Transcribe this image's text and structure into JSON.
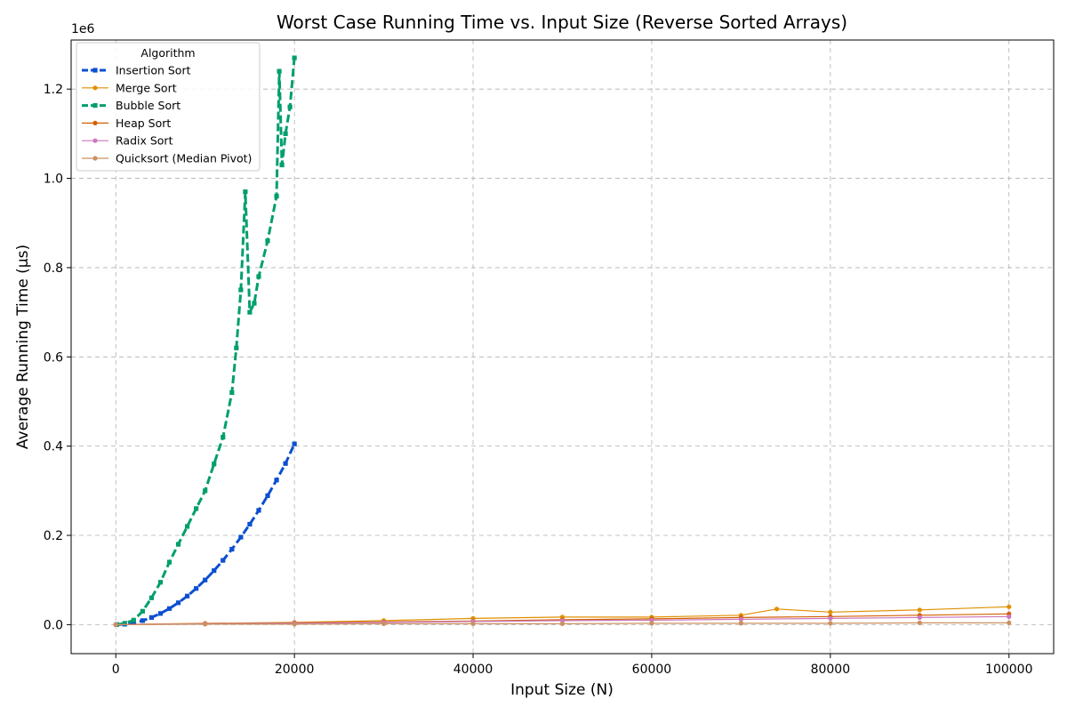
{
  "chart_data": {
    "type": "line",
    "title": "Worst Case Running Time vs. Input Size (Reverse Sorted Arrays)",
    "xlabel": "Input Size (N)",
    "ylabel": "Average Running Time (μs)",
    "y_offset_label": "1e6",
    "y_scale_factor": 1000000,
    "xlim": [
      -5000,
      105000
    ],
    "ylim": [
      -0.065,
      1.31
    ],
    "x_ticks": [
      0,
      20000,
      40000,
      60000,
      80000,
      100000
    ],
    "x_tick_labels": [
      "0",
      "20000",
      "40000",
      "60000",
      "80000",
      "100000"
    ],
    "y_ticks": [
      0.0,
      0.2,
      0.4,
      0.6,
      0.8,
      1.0,
      1.2
    ],
    "y_tick_labels": [
      "0.0",
      "0.2",
      "0.4",
      "0.6",
      "0.8",
      "1.0",
      "1.2"
    ],
    "grid": true,
    "legend": {
      "title": "Algorithm",
      "placement": "top-left"
    },
    "series": [
      {
        "name": "Insertion Sort",
        "color": "#0b4fd1",
        "dashed": true,
        "marker": "square",
        "x": [
          100,
          1000,
          2000,
          3000,
          4000,
          5000,
          6000,
          7000,
          8000,
          9000,
          10000,
          11000,
          12000,
          13000,
          14000,
          15000,
          16000,
          17000,
          18000,
          19000,
          20000
        ],
        "y": [
          0.0,
          0.001,
          0.004,
          0.009,
          0.016,
          0.025,
          0.036,
          0.049,
          0.064,
          0.081,
          0.1,
          0.121,
          0.144,
          0.169,
          0.196,
          0.225,
          0.256,
          0.289,
          0.324,
          0.361,
          0.405
        ]
      },
      {
        "name": "Merge Sort",
        "color": "#e08f00",
        "dashed": false,
        "marker": "circle",
        "x": [
          0,
          10000,
          20000,
          30000,
          40000,
          50000,
          60000,
          70000,
          74000,
          80000,
          90000,
          100000
        ],
        "y": [
          0.0,
          0.003,
          0.005,
          0.009,
          0.014,
          0.017,
          0.017,
          0.021,
          0.035,
          0.028,
          0.033,
          0.04
        ]
      },
      {
        "name": "Bubble Sort",
        "color": "#009e6e",
        "dashed": true,
        "marker": "square",
        "x": [
          100,
          1000,
          2000,
          3000,
          4000,
          5000,
          6000,
          7000,
          8000,
          9000,
          10000,
          11000,
          12000,
          13000,
          13500,
          14000,
          14500,
          15000,
          15500,
          16000,
          17000,
          18000,
          18300,
          18600,
          19000,
          19500,
          20000
        ],
        "y": [
          0.0,
          0.003,
          0.01,
          0.03,
          0.06,
          0.095,
          0.14,
          0.18,
          0.22,
          0.26,
          0.3,
          0.36,
          0.42,
          0.52,
          0.62,
          0.75,
          0.97,
          0.7,
          0.72,
          0.78,
          0.86,
          0.96,
          1.24,
          1.03,
          1.1,
          1.16,
          1.27
        ]
      },
      {
        "name": "Heap Sort",
        "color": "#d35f00",
        "dashed": false,
        "marker": "circle",
        "x": [
          0,
          10000,
          20000,
          30000,
          40000,
          50000,
          60000,
          70000,
          80000,
          90000,
          100000
        ],
        "y": [
          0.0,
          0.002,
          0.004,
          0.006,
          0.008,
          0.011,
          0.013,
          0.016,
          0.018,
          0.021,
          0.024
        ]
      },
      {
        "name": "Radix Sort",
        "color": "#cc78bc",
        "dashed": false,
        "marker": "circle",
        "x": [
          0,
          10000,
          20000,
          30000,
          40000,
          50000,
          60000,
          70000,
          80000,
          90000,
          100000
        ],
        "y": [
          0.0,
          0.002,
          0.003,
          0.005,
          0.007,
          0.009,
          0.01,
          0.012,
          0.014,
          0.016,
          0.018
        ]
      },
      {
        "name": "Quicksort (Median Pivot)",
        "color": "#ca9161",
        "dashed": false,
        "marker": "circle",
        "x": [
          0,
          10000,
          20000,
          30000,
          40000,
          50000,
          60000,
          70000,
          80000,
          90000,
          100000
        ],
        "y": [
          0.0,
          0.001,
          0.001,
          0.002,
          0.002,
          0.002,
          0.003,
          0.003,
          0.003,
          0.004,
          0.004
        ]
      }
    ]
  }
}
